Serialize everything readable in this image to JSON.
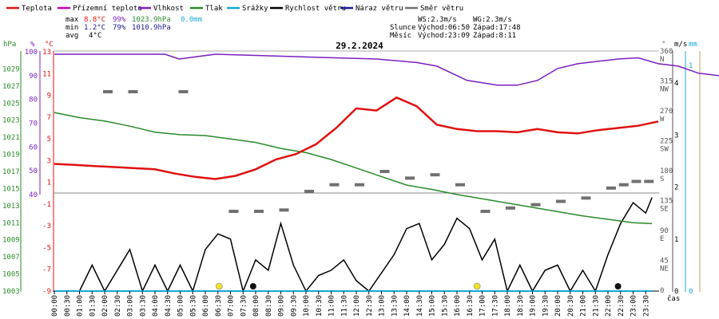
{
  "legend": [
    {
      "label": "Teplota",
      "color": "#e01010"
    },
    {
      "label": "Přízemní teplota",
      "color": "#c000c0"
    },
    {
      "label": "Vlhkost",
      "color": "#7a1fc0"
    },
    {
      "label": "Tlak",
      "color": "#2a8a2a"
    },
    {
      "label": "Srážky",
      "color": "#19a7d4"
    },
    {
      "label": "Rychlost větru",
      "color": "#000000"
    },
    {
      "label": "Náraz větru",
      "color": "#1a1a90"
    },
    {
      "label": "Směr větru",
      "color": "#707070"
    }
  ],
  "stats": {
    "max": {
      "label": "max",
      "temp": "8.8°C",
      "hum": "99%",
      "press": "1023.9hPa",
      "rain": "0.0mm"
    },
    "min": {
      "label": "min",
      "temp": "1.2°C",
      "hum": "79%",
      "press": "1010.9hPa"
    },
    "avg": {
      "label": "avg",
      "temp": "4°C"
    }
  },
  "info": {
    "ws": "WS:2.3m/s",
    "wg": "WG:2.3m/s",
    "sun_label": "Slunce",
    "sunrise": "Východ:06:50",
    "sunset": "Západ:17:48",
    "moon_label": "Měsíc",
    "moonrise": "Východ:23:09",
    "moonset": "Západ:8:11"
  },
  "title": "29.2.2024",
  "colors": {
    "temp": "#e01010",
    "hum": "#7a1fc0",
    "press": "#2a8a2a",
    "rain": "#19a7d4",
    "wind": "#000000",
    "dir": "#707070",
    "gust": "#1a1a90"
  },
  "axis_units": {
    "hpa": "hPa",
    "pct": "%",
    "deg": "°C",
    "deg2": "°",
    "ms": "m/s",
    "mm": "mm",
    "time": "čas"
  },
  "chart_data": {
    "type": "line",
    "title": "29.2.2024",
    "x_ticks": [
      "00:00",
      "00:30",
      "01:00",
      "01:30",
      "02:00",
      "02:30",
      "03:00",
      "03:30",
      "04:00",
      "04:30",
      "05:00",
      "05:30",
      "06:00",
      "06:30",
      "07:00",
      "07:30",
      "08:00",
      "08:30",
      "09:00",
      "09:30",
      "10:00",
      "10:30",
      "11:00",
      "11:30",
      "12:00",
      "12:30",
      "13:00",
      "13:30",
      "14:00",
      "14:30",
      "15:00",
      "15:30",
      "16:00",
      "16:30",
      "17:00",
      "17:30",
      "18:00",
      "18:30",
      "19:00",
      "19:30",
      "20:00",
      "20:30",
      "21:00",
      "21:30",
      "22:00",
      "22:30",
      "23:00",
      "23:30"
    ],
    "y_axes": {
      "pressure_hPa": {
        "ticks": [
          "1029",
          "1027",
          "1025",
          "1023",
          "1021",
          "1019",
          "1017",
          "1015",
          "1013",
          "1011",
          "1009",
          "1007",
          "1005",
          "1003"
        ],
        "range": [
          1003,
          1031
        ]
      },
      "humidity_pct": {
        "ticks": [
          "100",
          "90",
          "80",
          "70",
          "60",
          "50",
          "40"
        ],
        "range": [
          40,
          100
        ]
      },
      "temperature_C": {
        "ticks": [
          "13",
          "11",
          "9",
          "7",
          "5",
          "3",
          "1",
          "-1",
          "-3",
          "-5",
          "-7",
          "-9"
        ],
        "range": [
          -9,
          13
        ]
      },
      "direction_deg": {
        "ticks": [
          "360",
          "315",
          "270",
          "225",
          "180",
          "135",
          "90",
          "45",
          "0"
        ],
        "dir_labels": [
          "N",
          "NW",
          "W",
          "SW",
          "S",
          "SE",
          "E",
          "NE",
          ""
        ],
        "range": [
          0,
          360
        ]
      },
      "wind_ms": {
        "ticks": [
          "4",
          "3",
          "2",
          "1",
          "0"
        ],
        "range": [
          0,
          4.6
        ]
      },
      "rain_mm": {
        "ticks": [
          "1",
          "0"
        ],
        "range": [
          0,
          1.06
        ]
      }
    },
    "series": [
      {
        "name": "Teplota",
        "unit": "°C",
        "points": [
          [
            0,
            2.7
          ],
          [
            1,
            2.6
          ],
          [
            2,
            2.5
          ],
          [
            3,
            2.4
          ],
          [
            4,
            2.3
          ],
          [
            5,
            2.2
          ],
          [
            6,
            1.8
          ],
          [
            7,
            1.5
          ],
          [
            8,
            1.3
          ],
          [
            9,
            1.6
          ],
          [
            10,
            2.2
          ],
          [
            11,
            3.1
          ],
          [
            12,
            3.6
          ],
          [
            13,
            4.5
          ],
          [
            14,
            6
          ],
          [
            15,
            7.8
          ],
          [
            16,
            7.6
          ],
          [
            17,
            8.8
          ],
          [
            18,
            8
          ],
          [
            19,
            6.3
          ],
          [
            20,
            5.9
          ],
          [
            21,
            5.7
          ],
          [
            22,
            5.7
          ],
          [
            23,
            5.6
          ],
          [
            24,
            5.9
          ],
          [
            25,
            5.6
          ],
          [
            26,
            5.5
          ],
          [
            27,
            5.8
          ],
          [
            28,
            6.0
          ],
          [
            29,
            6.2
          ],
          [
            30,
            6.6
          ]
        ]
      },
      {
        "name": "Vlhkost",
        "unit": "%",
        "points": [
          [
            0,
            99
          ],
          [
            5.5,
            99
          ],
          [
            6.2,
            97
          ],
          [
            8,
            99
          ],
          [
            12,
            98
          ],
          [
            16,
            97
          ],
          [
            18,
            95.5
          ],
          [
            19,
            94
          ],
          [
            20.5,
            88
          ],
          [
            22,
            86
          ],
          [
            23,
            86
          ],
          [
            24,
            88
          ],
          [
            25,
            93
          ],
          [
            26,
            95
          ],
          [
            27,
            96
          ],
          [
            28,
            97
          ],
          [
            29,
            97.5
          ],
          [
            30,
            95
          ],
          [
            31,
            94
          ],
          [
            32,
            91
          ],
          [
            33,
            90
          ],
          [
            34.5,
            86
          ],
          [
            35,
            85
          ],
          [
            36,
            84
          ]
        ]
      },
      {
        "name": "Tlak",
        "unit": "hPa",
        "points": [
          [
            0,
            1023.9
          ],
          [
            2,
            1023.3
          ],
          [
            4,
            1022.9
          ],
          [
            6,
            1022.3
          ],
          [
            8,
            1021.6
          ],
          [
            10,
            1021.3
          ],
          [
            12,
            1021.2
          ],
          [
            14,
            1020.8
          ],
          [
            16,
            1020.4
          ],
          [
            18,
            1019.7
          ],
          [
            20,
            1019.2
          ],
          [
            22,
            1018.4
          ],
          [
            24,
            1017.4
          ],
          [
            26,
            1016.4
          ],
          [
            28,
            1015.4
          ],
          [
            30,
            1014.9
          ],
          [
            32,
            1014.3
          ],
          [
            34,
            1013.8
          ],
          [
            36,
            1013.3
          ],
          [
            38,
            1012.8
          ],
          [
            40,
            1012.3
          ],
          [
            42,
            1011.8
          ],
          [
            44,
            1011.4
          ],
          [
            46,
            1011.0
          ],
          [
            47.5,
            1010.9
          ]
        ]
      },
      {
        "name": "Srážky",
        "unit": "mm",
        "points": [
          [
            0,
            0
          ],
          [
            47.5,
            0
          ]
        ]
      },
      {
        "name": "Rychlost větru",
        "unit": "m/s",
        "points": [
          [
            0,
            0
          ],
          [
            2,
            0
          ],
          [
            3,
            0.5
          ],
          [
            4,
            0
          ],
          [
            6,
            0.8
          ],
          [
            7,
            0
          ],
          [
            8,
            0.5
          ],
          [
            9,
            0
          ],
          [
            10,
            0.5
          ],
          [
            11,
            0
          ],
          [
            12,
            0.8
          ],
          [
            13,
            1.1
          ],
          [
            14,
            1.0
          ],
          [
            15,
            0
          ],
          [
            16,
            0.6
          ],
          [
            17,
            0.4
          ],
          [
            18,
            1.3
          ],
          [
            19,
            0.5
          ],
          [
            20,
            0
          ],
          [
            21,
            0.3
          ],
          [
            22,
            0.4
          ],
          [
            23,
            0.6
          ],
          [
            24,
            0.2
          ],
          [
            25,
            0
          ],
          [
            27,
            0.7
          ],
          [
            28,
            1.2
          ],
          [
            29,
            1.3
          ],
          [
            30,
            0.6
          ],
          [
            31,
            0.9
          ],
          [
            32,
            1.4
          ],
          [
            33,
            1.2
          ],
          [
            34,
            0.6
          ],
          [
            35,
            1.0
          ],
          [
            36,
            0
          ],
          [
            37,
            0.5
          ],
          [
            38,
            0
          ],
          [
            39,
            0.4
          ],
          [
            40,
            0.5
          ],
          [
            41,
            0
          ],
          [
            42,
            0.4
          ],
          [
            43,
            0
          ],
          [
            44,
            0.7
          ],
          [
            45,
            1.3
          ],
          [
            46,
            1.7
          ],
          [
            47,
            1.5
          ],
          [
            47.5,
            1.8
          ]
        ]
      },
      {
        "name": "Směr větru",
        "unit": "°",
        "points": [
          [
            4,
            300
          ],
          [
            6,
            300
          ],
          [
            10,
            300
          ],
          [
            14,
            120
          ],
          [
            16,
            120
          ],
          [
            18,
            122
          ],
          [
            20,
            150
          ],
          [
            22,
            160
          ],
          [
            24,
            160
          ],
          [
            26,
            180
          ],
          [
            28,
            170
          ],
          [
            30,
            175
          ],
          [
            32,
            160
          ],
          [
            34,
            120
          ],
          [
            36,
            125
          ],
          [
            38,
            130
          ],
          [
            40,
            135
          ],
          [
            42,
            140
          ],
          [
            44,
            155
          ],
          [
            45,
            160
          ],
          [
            46,
            165
          ],
          [
            47,
            165
          ]
        ]
      }
    ],
    "sun_markers": [
      13.1,
      33.6
    ],
    "moon_markers": [
      15.8,
      44.8
    ],
    "grid": false,
    "legend_position": "top"
  }
}
